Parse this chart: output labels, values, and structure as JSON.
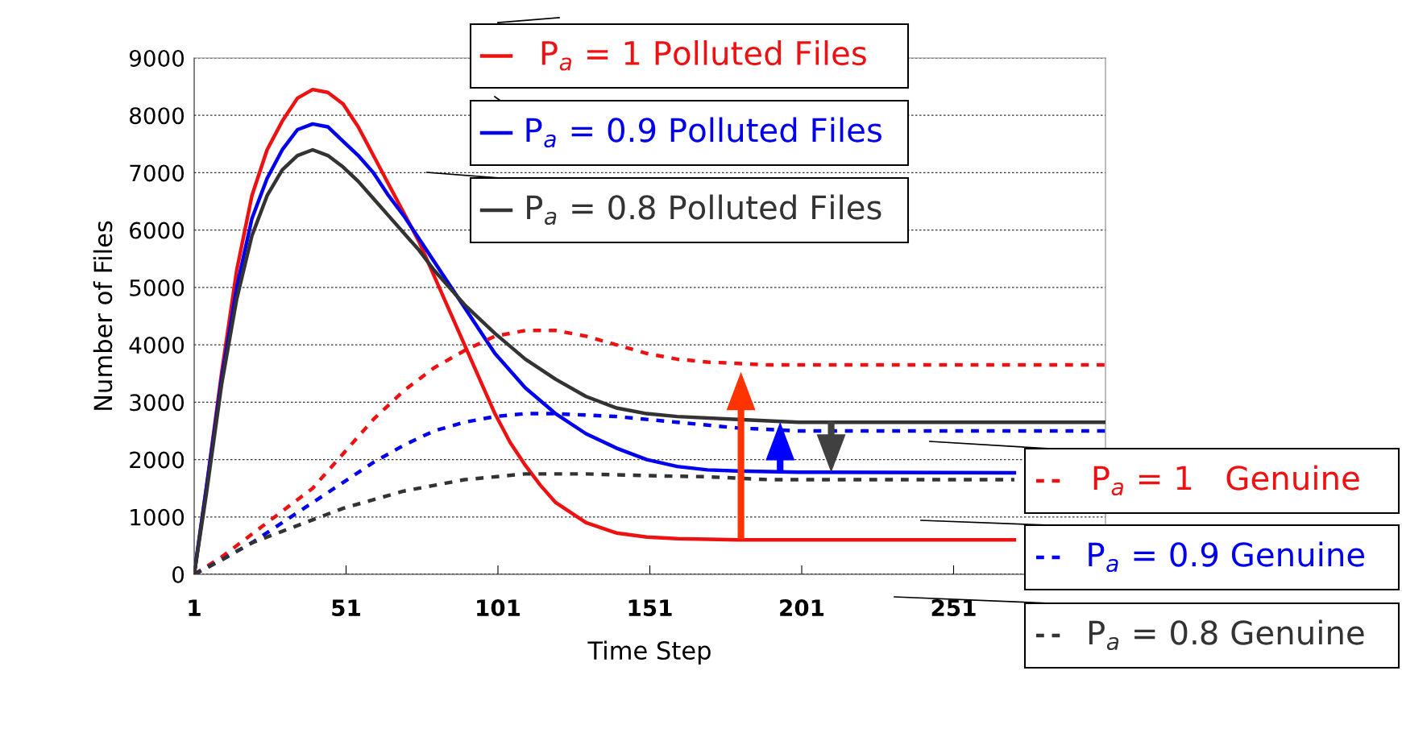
{
  "chart_data": {
    "type": "line",
    "xlabel": "Time Step",
    "ylabel": "Number of Files",
    "xlim": [
      1,
      301
    ],
    "xticks": [
      1,
      51,
      101,
      151,
      201,
      251
    ],
    "ylim": [
      0,
      9000
    ],
    "yticks": [
      0,
      1000,
      2000,
      3000,
      4000,
      5000,
      6000,
      7000,
      8000,
      9000
    ],
    "grid": "y",
    "legend": "right",
    "marker": "none",
    "series": [
      {
        "name": "P$_{a}$ = 1 Polluted Files",
        "color": "#ee1111",
        "line_style": "solid",
        "x": [
          1,
          5,
          10,
          15,
          20,
          25,
          30,
          35,
          40,
          45,
          50,
          55,
          60,
          65,
          70,
          75,
          80,
          85,
          90,
          95,
          100,
          105,
          110,
          115,
          120,
          130,
          140,
          150,
          160,
          180,
          271
        ],
        "values": [
          0,
          1500,
          3500,
          5300,
          6600,
          7400,
          7900,
          8300,
          8450,
          8400,
          8200,
          7800,
          7300,
          6800,
          6300,
          5800,
          5200,
          4600,
          4000,
          3400,
          2800,
          2300,
          1900,
          1550,
          1250,
          900,
          720,
          650,
          620,
          600,
          600
        ]
      },
      {
        "name": "P$_{a}$ = 0.9 Polluted Files",
        "color": "#0000ee",
        "line_style": "solid",
        "x": [
          1,
          5,
          10,
          15,
          20,
          25,
          30,
          35,
          40,
          45,
          50,
          55,
          60,
          65,
          70,
          75,
          80,
          85,
          90,
          95,
          100,
          110,
          120,
          130,
          140,
          150,
          160,
          170,
          180,
          200,
          271
        ],
        "values": [
          0,
          1500,
          3400,
          5000,
          6200,
          6900,
          7400,
          7750,
          7850,
          7800,
          7550,
          7300,
          7000,
          6600,
          6250,
          5850,
          5450,
          5050,
          4650,
          4250,
          3850,
          3250,
          2800,
          2450,
          2200,
          2000,
          1880,
          1820,
          1800,
          1780,
          1770
        ]
      },
      {
        "name": "P$_{a}$ = 0.8 Polluted Files",
        "color": "#333333",
        "line_style": "solid",
        "x": [
          1,
          5,
          10,
          15,
          20,
          25,
          30,
          35,
          40,
          45,
          50,
          55,
          60,
          65,
          70,
          75,
          80,
          85,
          90,
          95,
          100,
          110,
          120,
          130,
          140,
          150,
          160,
          180,
          200,
          301
        ],
        "values": [
          0,
          1400,
          3300,
          4800,
          5900,
          6600,
          7050,
          7300,
          7400,
          7300,
          7100,
          6850,
          6550,
          6250,
          5950,
          5650,
          5300,
          5000,
          4700,
          4450,
          4200,
          3750,
          3400,
          3100,
          2900,
          2800,
          2750,
          2700,
          2650,
          2650
        ]
      },
      {
        "name": "P$_{a}$ = 1   Genuine",
        "color": "#ee1111",
        "line_style": "dashed",
        "x": [
          1,
          10,
          20,
          30,
          40,
          50,
          60,
          70,
          80,
          90,
          100,
          110,
          120,
          130,
          140,
          150,
          160,
          170,
          190,
          301
        ],
        "values": [
          0,
          300,
          700,
          1100,
          1500,
          2100,
          2700,
          3200,
          3600,
          3900,
          4150,
          4250,
          4250,
          4150,
          4000,
          3850,
          3750,
          3700,
          3650,
          3650
        ]
      },
      {
        "name": "P$_{a}$ = 0.9 Genuine",
        "color": "#0000ee",
        "line_style": "dashed",
        "x": [
          1,
          10,
          20,
          30,
          40,
          50,
          60,
          70,
          80,
          90,
          100,
          110,
          120,
          140,
          160,
          180,
          200,
          301
        ],
        "values": [
          0,
          250,
          550,
          900,
          1250,
          1600,
          1950,
          2250,
          2500,
          2650,
          2750,
          2800,
          2800,
          2750,
          2650,
          2550,
          2500,
          2500
        ]
      },
      {
        "name": "P$_{a}$ = 0.8 Genuine",
        "color": "#333333",
        "line_style": "dashed",
        "x": [
          1,
          10,
          20,
          30,
          40,
          50,
          60,
          70,
          80,
          90,
          100,
          110,
          130,
          150,
          170,
          190,
          271
        ],
        "values": [
          0,
          250,
          550,
          750,
          950,
          1150,
          1300,
          1450,
          1550,
          1650,
          1700,
          1750,
          1750,
          1720,
          1700,
          1650,
          1650
        ]
      }
    ]
  }
}
